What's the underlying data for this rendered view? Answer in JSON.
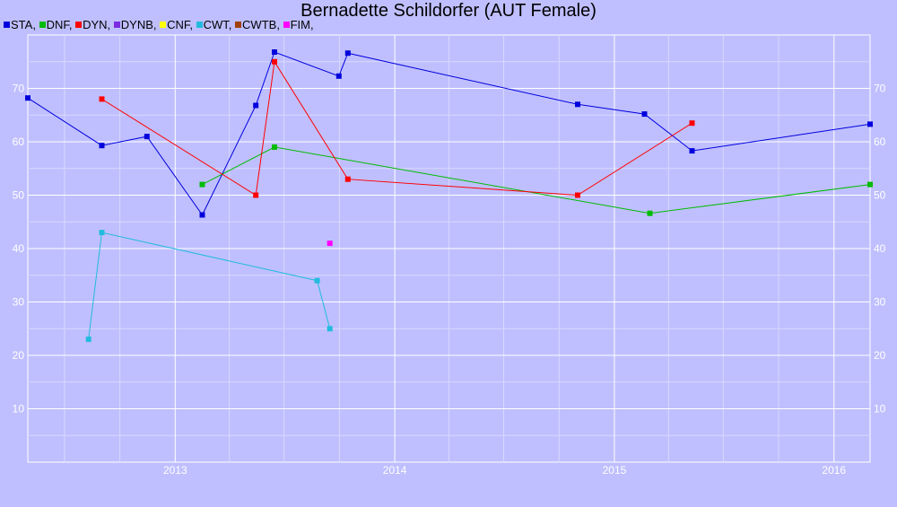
{
  "chart_data": {
    "type": "line",
    "title": "Bernadette Schildorfer (AUT Female)",
    "xlabel": "",
    "ylabel": "",
    "x_range": [
      "2012-05-01",
      "2016-03-01"
    ],
    "y_range": [
      0,
      80
    ],
    "y_ticks": [
      10,
      20,
      30,
      40,
      50,
      60,
      70
    ],
    "x_ticks": [
      "2013",
      "2014",
      "2015",
      "2016"
    ],
    "grid": true,
    "legend_placement": "top-left",
    "legend": [
      {
        "label": "STA,",
        "color": "#0000dd"
      },
      {
        "label": "DNF,",
        "color": "#00bb00"
      },
      {
        "label": "DYN,",
        "color": "#ff0000"
      },
      {
        "label": "DYNB,",
        "color": "#7b2be0"
      },
      {
        "label": "CNF,",
        "color": "#ffff00"
      },
      {
        "label": "CWT,",
        "color": "#22bbdd"
      },
      {
        "label": "CWTB,",
        "color": "#a0400a"
      },
      {
        "label": "FIM,",
        "color": "#ff00ff"
      }
    ],
    "series": [
      {
        "name": "STA",
        "color": "#0000dd",
        "points": [
          [
            "2012-05-01",
            68.2
          ],
          [
            "2012-09-01",
            59.3
          ],
          [
            "2012-11-15",
            61.0
          ],
          [
            "2013-02-15",
            46.3
          ],
          [
            "2013-05-15",
            66.8
          ],
          [
            "2013-06-15",
            76.8
          ],
          [
            "2013-09-30",
            72.3
          ],
          [
            "2013-10-15",
            76.6
          ],
          [
            "2014-11-01",
            67.0
          ],
          [
            "2015-02-20",
            65.2
          ],
          [
            "2015-05-10",
            58.3
          ],
          [
            "2016-03-01",
            63.3
          ]
        ]
      },
      {
        "name": "DNF",
        "color": "#00bb00",
        "points": [
          [
            "2013-02-15",
            52.0
          ],
          [
            "2013-06-15",
            59.0
          ],
          [
            "2015-03-01",
            46.6
          ],
          [
            "2016-03-01",
            52.0
          ]
        ]
      },
      {
        "name": "DYN",
        "color": "#ff0000",
        "points": [
          [
            "2012-09-01",
            68.0
          ],
          [
            "2013-05-15",
            50.0
          ],
          [
            "2013-06-15",
            75.0
          ],
          [
            "2013-10-15",
            53.0
          ],
          [
            "2014-11-01",
            50.0
          ],
          [
            "2015-05-10",
            63.5
          ]
        ]
      },
      {
        "name": "CWT",
        "color": "#22bbdd",
        "points": [
          [
            "2012-08-10",
            23.0
          ],
          [
            "2012-09-01",
            43.0
          ],
          [
            "2013-08-25",
            34.0
          ],
          [
            "2013-09-15",
            25.0
          ]
        ]
      },
      {
        "name": "FIM",
        "color": "#ff00ff",
        "points": [
          [
            "2013-09-15",
            41.0
          ]
        ]
      }
    ]
  }
}
